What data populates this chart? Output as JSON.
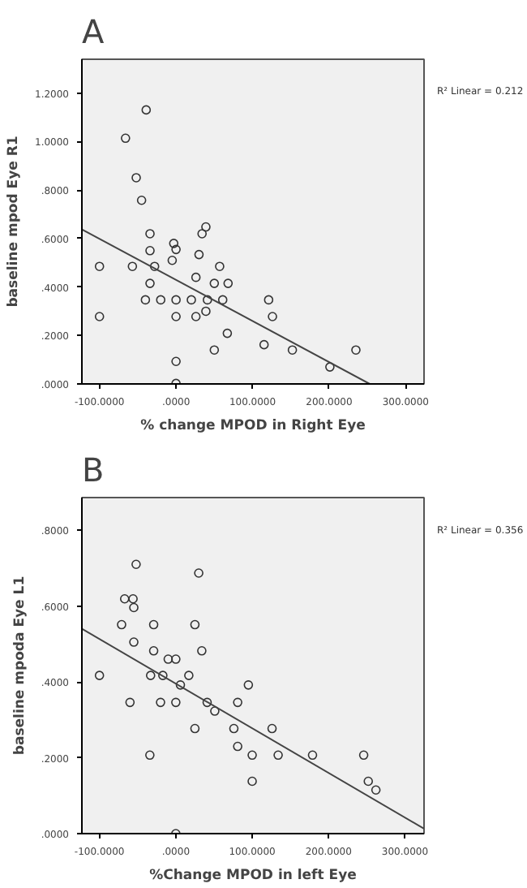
{
  "chart_data": [
    {
      "type": "scatter",
      "title": "A",
      "xlabel": "% change MPOD in Right Eye",
      "ylabel": "baseline mpod Eye R1",
      "annotations": [
        "R² Linear = 0.212"
      ],
      "xlim": [
        -123,
        324
      ],
      "ylim": [
        0,
        1.34
      ],
      "xticks": [
        {
          "value": -100,
          "label": "-100.0000"
        },
        {
          "value": 0,
          "label": ".0000"
        },
        {
          "value": 100,
          "label": "100.0000"
        },
        {
          "value": 200,
          "label": "200.0000"
        },
        {
          "value": 300,
          "label": "300.0000"
        }
      ],
      "yticks": [
        {
          "value": 0,
          "label": ".0000"
        },
        {
          "value": 0.2,
          "label": ".2000"
        },
        {
          "value": 0.4,
          "label": ".4000"
        },
        {
          "value": 0.6,
          "label": ".6000"
        },
        {
          "value": 0.8,
          "label": ".8000"
        },
        {
          "value": 1.0,
          "label": "1.0000"
        },
        {
          "value": 1.2,
          "label": "1.2000"
        }
      ],
      "grid": false,
      "series": [
        {
          "marker": "circle",
          "color": "#333333",
          "x": [
            -100,
            -100,
            -57,
            -34,
            -34,
            -28,
            -34,
            -40,
            -20,
            -5,
            -3,
            0,
            0,
            0,
            0,
            0,
            26,
            20,
            26,
            30,
            34,
            39,
            41,
            39,
            50,
            50,
            57,
            61,
            68,
            67,
            115,
            121,
            126,
            152,
            201,
            235,
            -39,
            -66,
            -52,
            -45
          ],
          "values": [
            0.485,
            0.278,
            0.485,
            0.62,
            0.55,
            0.485,
            0.415,
            0.347,
            0.347,
            0.51,
            0.58,
            0.555,
            0.347,
            0.278,
            0.093,
            0.002,
            0.44,
            0.347,
            0.278,
            0.534,
            0.62,
            0.648,
            0.347,
            0.3,
            0.415,
            0.14,
            0.485,
            0.347,
            0.415,
            0.209,
            0.162,
            0.347,
            0.278,
            0.14,
            0.07,
            0.14,
            1.131,
            1.014,
            0.851,
            0.758
          ]
        },
        {
          "type": "line",
          "color": "#444444",
          "x": [
            -123,
            253
          ],
          "values": [
            0.638,
            0
          ]
        }
      ]
    },
    {
      "type": "scatter",
      "title": "B",
      "xlabel": "%Change MPOD in left Eye",
      "ylabel": "baseline mpoda Eye L1",
      "annotations": [
        "R² Linear = 0.356"
      ],
      "xlim": [
        -123,
        325
      ],
      "ylim": [
        0,
        0.886
      ],
      "xticks": [
        {
          "value": -100,
          "label": "-100.0000"
        },
        {
          "value": 0,
          "label": ".0000"
        },
        {
          "value": 100,
          "label": "100.0000"
        },
        {
          "value": 200,
          "label": "200.0000"
        },
        {
          "value": 300,
          "label": "300.0000"
        }
      ],
      "yticks": [
        {
          "value": 0,
          "label": ".0000"
        },
        {
          "value": 0.2,
          "label": ".2000"
        },
        {
          "value": 0.4,
          "label": ".4000"
        },
        {
          "value": 0.6,
          "label": ".6000"
        },
        {
          "value": 0.8,
          "label": ".8000"
        }
      ],
      "grid": false,
      "series": [
        {
          "marker": "circle",
          "color": "#333333",
          "x": [
            -52,
            30,
            -67,
            -56,
            -55,
            -71,
            -29,
            25,
            -55,
            -29,
            34,
            -10,
            0,
            -100,
            -33,
            -17,
            17,
            6,
            95,
            -60,
            -20,
            0,
            41,
            81,
            51,
            25,
            76,
            126,
            81,
            -34,
            100,
            134,
            179,
            246,
            100,
            252,
            262,
            0
          ],
          "values": [
            0.71,
            0.687,
            0.619,
            0.619,
            0.596,
            0.551,
            0.551,
            0.551,
            0.505,
            0.482,
            0.482,
            0.46,
            0.46,
            0.417,
            0.417,
            0.417,
            0.417,
            0.392,
            0.392,
            0.346,
            0.346,
            0.346,
            0.346,
            0.346,
            0.323,
            0.277,
            0.277,
            0.277,
            0.23,
            0.207,
            0.207,
            0.207,
            0.207,
            0.207,
            0.138,
            0.138,
            0.115,
            0.0
          ]
        },
        {
          "type": "line",
          "color": "#444444",
          "x": [
            -123,
            325
          ],
          "values": [
            0.54,
            0.013
          ]
        }
      ]
    }
  ]
}
